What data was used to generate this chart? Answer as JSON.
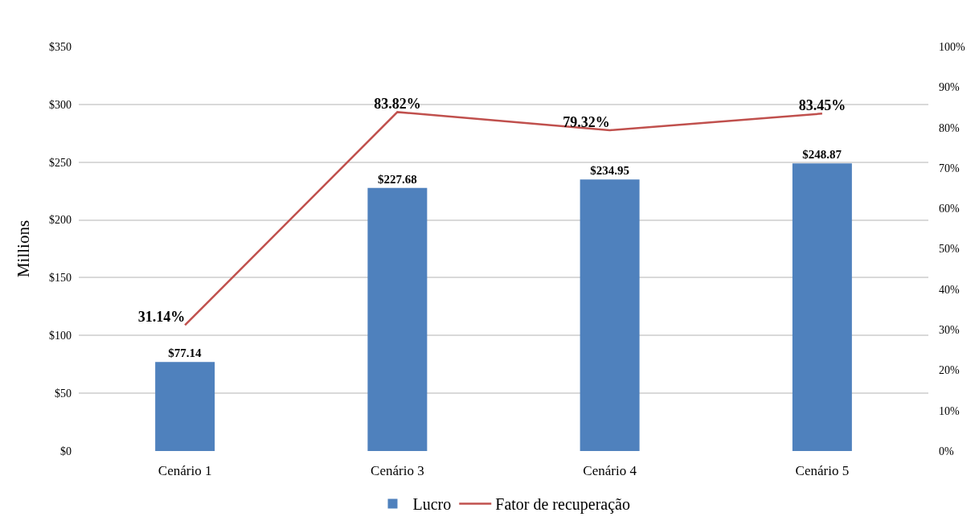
{
  "chart_data": {
    "type": "bar",
    "ylabel": "Millions",
    "categories": [
      "Cenário 1",
      "Cenário 3",
      "Cenário 4",
      "Cenário 5"
    ],
    "series": [
      {
        "name": "Lucro",
        "color": "#4f81bd",
        "values": [
          77.14,
          227.68,
          234.95,
          248.87
        ],
        "value_labels": [
          "$77.14",
          "$227.68",
          "$234.95",
          "$248.87"
        ]
      },
      {
        "name": "Fator de recuperação",
        "type": "line",
        "axis": "y2",
        "color": "#c0504d",
        "values": [
          31.14,
          83.82,
          79.32,
          83.45
        ],
        "value_labels": [
          "31.14%",
          "83.82%",
          "79.32%",
          "83.45%"
        ]
      }
    ],
    "ylim": [
      0,
      350
    ],
    "yticks": [
      {
        "value": 0,
        "label": "$0"
      },
      {
        "value": 50,
        "label": "$50"
      },
      {
        "value": 100,
        "label": "$100"
      },
      {
        "value": 150,
        "label": "$150"
      },
      {
        "value": 200,
        "label": "$200"
      },
      {
        "value": 250,
        "label": "$250"
      },
      {
        "value": 300,
        "label": "$300"
      },
      {
        "value": 350,
        "label": "$350"
      }
    ],
    "y2lim": [
      0,
      100
    ],
    "y2ticks": [
      {
        "value": 0,
        "label": "0%"
      },
      {
        "value": 10,
        "label": "10%"
      },
      {
        "value": 20,
        "label": "20%"
      },
      {
        "value": 30,
        "label": "30%"
      },
      {
        "value": 40,
        "label": "40%"
      },
      {
        "value": 50,
        "label": "50%"
      },
      {
        "value": 60,
        "label": "60%"
      },
      {
        "value": 70,
        "label": "70%"
      },
      {
        "value": 80,
        "label": "80%"
      },
      {
        "value": 90,
        "label": "90%"
      },
      {
        "value": 100,
        "label": "100%"
      }
    ],
    "grid": "y",
    "legend": "bottom"
  }
}
